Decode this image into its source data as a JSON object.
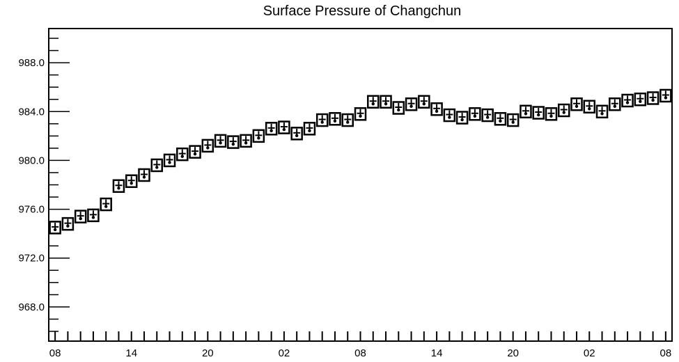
{
  "chart_data": {
    "type": "scatter",
    "title": "Surface Pressure of Changchun",
    "xlabel": "",
    "ylabel": "",
    "ylim": [
      965.2,
      990.8
    ],
    "yticks": [
      968.0,
      972.0,
      976.0,
      980.0,
      984.0,
      988.0
    ],
    "ytick_labels": [
      "968.0",
      "972.0",
      "976.0",
      "980.0",
      "984.0",
      "988.0"
    ],
    "xlim": [
      -0.5,
      48.5
    ],
    "xticks": [
      0,
      6,
      12,
      18,
      24,
      30,
      36,
      42,
      48
    ],
    "xtick_labels": [
      "08",
      "14",
      "20",
      "02",
      "08",
      "14",
      "20",
      "02",
      "08"
    ],
    "marker": "boxed-cross",
    "x": [
      0,
      1,
      2,
      3,
      4,
      5,
      6,
      7,
      8,
      9,
      10,
      11,
      12,
      13,
      14,
      15,
      16,
      17,
      18,
      19,
      20,
      21,
      22,
      23,
      24,
      25,
      26,
      27,
      28,
      29,
      30,
      31,
      32,
      33,
      34,
      35,
      36,
      37,
      38,
      39,
      40,
      41,
      42,
      43,
      44,
      45,
      46,
      47,
      48
    ],
    "values": [
      974.5,
      974.8,
      975.4,
      975.5,
      976.4,
      977.9,
      978.3,
      978.8,
      979.6,
      980.0,
      980.5,
      980.7,
      981.2,
      981.6,
      981.5,
      981.6,
      982.0,
      982.6,
      982.7,
      982.2,
      982.6,
      983.3,
      983.4,
      983.3,
      983.8,
      984.8,
      984.8,
      984.3,
      984.6,
      984.8,
      984.2,
      983.7,
      983.5,
      983.8,
      983.7,
      983.4,
      983.3,
      984.0,
      983.9,
      983.8,
      984.1,
      984.6,
      984.4,
      984.0,
      984.6,
      984.9,
      985.0,
      985.1,
      985.3
    ],
    "grid": false
  }
}
